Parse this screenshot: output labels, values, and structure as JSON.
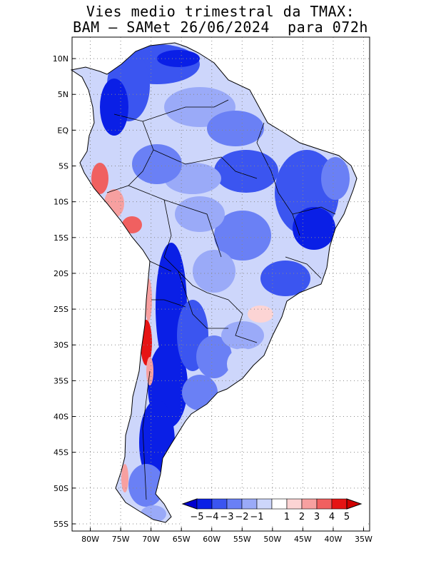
{
  "title": {
    "line1": "Vies medio trimestral da TMAX:",
    "line2": "BAM – SAMet 26/06/2024  para 072h"
  },
  "map": {
    "region": "South America",
    "lon_range": [
      -83,
      -34
    ],
    "lat_range": [
      -56,
      13
    ],
    "lon_ticks": [
      {
        "value": -80,
        "label": "80W"
      },
      {
        "value": -75,
        "label": "75W"
      },
      {
        "value": -70,
        "label": "70W"
      },
      {
        "value": -65,
        "label": "65W"
      },
      {
        "value": -60,
        "label": "60W"
      },
      {
        "value": -55,
        "label": "55W"
      },
      {
        "value": -50,
        "label": "50W"
      },
      {
        "value": -45,
        "label": "45W"
      },
      {
        "value": -40,
        "label": "40W"
      },
      {
        "value": -35,
        "label": "35W"
      }
    ],
    "lat_ticks": [
      {
        "value": 10,
        "label": "10N"
      },
      {
        "value": 5,
        "label": "5N"
      },
      {
        "value": 0,
        "label": "EQ"
      },
      {
        "value": -5,
        "label": "5S"
      },
      {
        "value": -10,
        "label": "10S"
      },
      {
        "value": -15,
        "label": "15S"
      },
      {
        "value": -20,
        "label": "20S"
      },
      {
        "value": -25,
        "label": "25S"
      },
      {
        "value": -30,
        "label": "30S"
      },
      {
        "value": -35,
        "label": "35S"
      },
      {
        "value": -40,
        "label": "40S"
      },
      {
        "value": -45,
        "label": "45S"
      },
      {
        "value": -50,
        "label": "50S"
      },
      {
        "value": -55,
        "label": "55S"
      }
    ],
    "grid": "dotted"
  },
  "colorbar": {
    "labels": [
      "−5",
      "−4",
      "−3",
      "−2",
      "−1",
      "1",
      "2",
      "3",
      "4",
      "5"
    ],
    "colors": [
      "#0a1fe6",
      "#3b55f0",
      "#6a80f5",
      "#9aaaf8",
      "#cdd6fb",
      "#ffffff",
      "#fcd4d4",
      "#f7a0a0",
      "#f06060",
      "#e61414"
    ],
    "min_arrow_color": "#0000d0",
    "max_arrow_color": "#d00000"
  }
}
